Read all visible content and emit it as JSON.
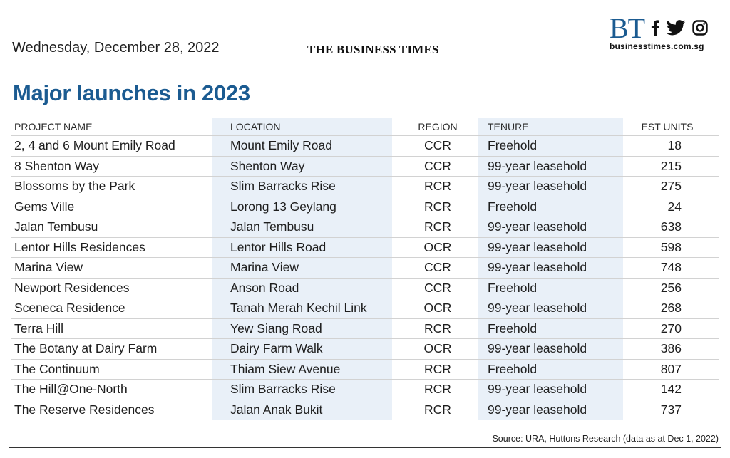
{
  "header": {
    "date": "Wednesday, December 28, 2022",
    "masthead": "THE BUSINESS TIMES",
    "logo": "BT",
    "website": "businesstimes.com.sg",
    "social_icons": [
      "facebook-icon",
      "twitter-icon",
      "instagram-icon"
    ]
  },
  "colors": {
    "title": "#1b5b91",
    "shaded_column": "#e9f0f8"
  },
  "chart_data": {
    "type": "table",
    "title": "Major launches in 2023",
    "columns": [
      "PROJECT NAME",
      "LOCATION",
      "REGION",
      "TENURE",
      "EST UNITS"
    ],
    "rows": [
      [
        "2, 4 and 6 Mount Emily Road",
        "Mount Emily Road",
        "CCR",
        "Freehold",
        18
      ],
      [
        "8 Shenton Way",
        "Shenton Way",
        "CCR",
        "99-year leasehold",
        215
      ],
      [
        "Blossoms by the Park",
        "Slim Barracks Rise",
        "RCR",
        "99-year leasehold",
        275
      ],
      [
        "Gems Ville",
        "Lorong 13 Geylang",
        "RCR",
        "Freehold",
        24
      ],
      [
        "Jalan Tembusu",
        "Jalan Tembusu",
        "RCR",
        "99-year leasehold",
        638
      ],
      [
        "Lentor Hills Residences",
        "Lentor Hills Road",
        "OCR",
        "99-year leasehold",
        598
      ],
      [
        "Marina View",
        "Marina View",
        "CCR",
        "99-year leasehold",
        748
      ],
      [
        "Newport Residences",
        "Anson Road",
        "CCR",
        "Freehold",
        256
      ],
      [
        "Sceneca Residence",
        "Tanah Merah Kechil Link",
        "OCR",
        "99-year leasehold",
        268
      ],
      [
        "Terra Hill",
        "Yew Siang Road",
        "RCR",
        "Freehold",
        270
      ],
      [
        "The Botany at Dairy Farm",
        "Dairy Farm Walk",
        "OCR",
        "99-year leasehold",
        386
      ],
      [
        "The Continuum",
        "Thiam Siew Avenue",
        "RCR",
        "Freehold",
        807
      ],
      [
        "The Hill@One-North",
        "Slim Barracks Rise",
        "RCR",
        "99-year leasehold",
        142
      ],
      [
        "The Reserve Residences",
        "Jalan Anak Bukit",
        "RCR",
        "99-year leasehold",
        737
      ]
    ],
    "source": "Source: URA, Huttons Research (data as at Dec 1, 2022)"
  }
}
